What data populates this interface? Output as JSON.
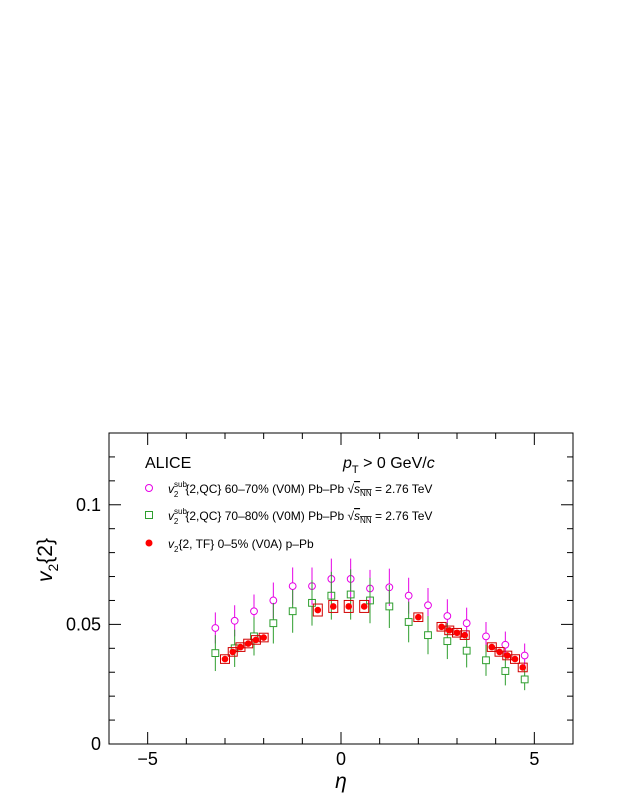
{
  "chart_data": {
    "type": "scatter",
    "title": "",
    "experiment": "ALICE",
    "condition": {
      "var": "p",
      "sub": "T",
      "rest": " > 0 GeV/",
      "unit_italic": "c"
    },
    "xlabel": "η",
    "ylabel": {
      "main": "v",
      "sub": "2",
      "rest": "{2}"
    },
    "xlim": [
      -6,
      6
    ],
    "ylim": [
      0,
      0.13
    ],
    "xticks": [
      {
        "v": -5,
        "label": "−5"
      },
      {
        "v": 0,
        "label": "0"
      },
      {
        "v": 5,
        "label": "5"
      }
    ],
    "yticks": [
      {
        "v": 0,
        "label": "0"
      },
      {
        "v": 0.05,
        "label": "0.05"
      },
      {
        "v": 0.1,
        "label": "0.1"
      }
    ],
    "grid": false,
    "legend_position": "top-left",
    "series": [
      {
        "id": "pbpb6070",
        "legend": {
          "v": "v",
          "sub": "2",
          "sup": "sub",
          "text": "{2,QC} 60–70% (V0M) Pb–Pb ",
          "sqrt": "s",
          "sqrt_sub": "NN",
          "tail": " = 2.76 TeV"
        },
        "marker": "open-circle",
        "color": "#e600e6",
        "points": [
          {
            "x": -3.25,
            "y": 0.0485,
            "err": 0.0065
          },
          {
            "x": -2.75,
            "y": 0.0515,
            "err": 0.0065
          },
          {
            "x": -2.25,
            "y": 0.0555,
            "err": 0.007
          },
          {
            "x": -1.75,
            "y": 0.06,
            "err": 0.0075
          },
          {
            "x": -1.25,
            "y": 0.066,
            "err": 0.0078
          },
          {
            "x": -0.75,
            "y": 0.066,
            "err": 0.0078
          },
          {
            "x": -0.25,
            "y": 0.069,
            "err": 0.0085
          },
          {
            "x": 0.25,
            "y": 0.069,
            "err": 0.0085
          },
          {
            "x": 0.75,
            "y": 0.065,
            "err": 0.0078
          },
          {
            "x": 1.25,
            "y": 0.0655,
            "err": 0.0078
          },
          {
            "x": 1.75,
            "y": 0.062,
            "err": 0.0075
          },
          {
            "x": 2.25,
            "y": 0.058,
            "err": 0.0072
          },
          {
            "x": 2.75,
            "y": 0.0535,
            "err": 0.007
          },
          {
            "x": 3.25,
            "y": 0.0505,
            "err": 0.0065
          },
          {
            "x": 3.75,
            "y": 0.045,
            "err": 0.006
          },
          {
            "x": 4.25,
            "y": 0.0415,
            "err": 0.0055
          },
          {
            "x": 4.75,
            "y": 0.037,
            "err": 0.005
          }
        ]
      },
      {
        "id": "pbpb7080",
        "legend": {
          "v": "v",
          "sub": "2",
          "sup": "sub",
          "text": "{2,QC} 70–80% (V0M) Pb–Pb ",
          "sqrt": "s",
          "sqrt_sub": "NN",
          "tail": " = 2.76 TeV"
        },
        "marker": "open-square",
        "color": "#2e9e2e",
        "points": [
          {
            "x": -3.25,
            "y": 0.038,
            "err": 0.0075
          },
          {
            "x": -2.75,
            "y": 0.04,
            "err": 0.0078
          },
          {
            "x": -2.25,
            "y": 0.045,
            "err": 0.008
          },
          {
            "x": -1.75,
            "y": 0.0505,
            "err": 0.0085
          },
          {
            "x": -1.25,
            "y": 0.0555,
            "err": 0.009
          },
          {
            "x": -0.75,
            "y": 0.059,
            "err": 0.0095
          },
          {
            "x": -0.25,
            "y": 0.062,
            "err": 0.01
          },
          {
            "x": 0.25,
            "y": 0.0625,
            "err": 0.0105
          },
          {
            "x": 0.75,
            "y": 0.06,
            "err": 0.0095
          },
          {
            "x": 1.25,
            "y": 0.0575,
            "err": 0.009
          },
          {
            "x": 1.75,
            "y": 0.051,
            "err": 0.0085
          },
          {
            "x": 2.25,
            "y": 0.0455,
            "err": 0.008
          },
          {
            "x": 2.75,
            "y": 0.043,
            "err": 0.0075
          },
          {
            "x": 3.25,
            "y": 0.039,
            "err": 0.007
          },
          {
            "x": 3.75,
            "y": 0.035,
            "err": 0.0065
          },
          {
            "x": 4.25,
            "y": 0.0305,
            "err": 0.006
          },
          {
            "x": 4.75,
            "y": 0.027,
            "err": 0.0045
          }
        ]
      },
      {
        "id": "ppb",
        "legend": {
          "v": "v",
          "sub": "2",
          "sup": "",
          "text": "{2, TF} 0–5% (V0A) p–Pb",
          "sqrt": "",
          "sqrt_sub": "",
          "tail": ""
        },
        "marker": "filled-circle",
        "color": "#ff0000",
        "syst_color": "#d00000",
        "points": [
          {
            "x": -3.0,
            "y": 0.0355,
            "sys": 0.0018
          },
          {
            "x": -2.8,
            "y": 0.0385,
            "sys": 0.0018
          },
          {
            "x": -2.6,
            "y": 0.0405,
            "sys": 0.0018
          },
          {
            "x": -2.4,
            "y": 0.042,
            "sys": 0.0018
          },
          {
            "x": -2.2,
            "y": 0.0435,
            "sys": 0.0018
          },
          {
            "x": -2.0,
            "y": 0.0445,
            "sys": 0.0018
          },
          {
            "x": -0.6,
            "y": 0.056,
            "sys": 0.0025
          },
          {
            "x": -0.2,
            "y": 0.0575,
            "sys": 0.0025
          },
          {
            "x": 0.2,
            "y": 0.0575,
            "sys": 0.0025
          },
          {
            "x": 0.6,
            "y": 0.0575,
            "sys": 0.0025
          },
          {
            "x": 2.0,
            "y": 0.053,
            "sys": 0.0018
          },
          {
            "x": 2.6,
            "y": 0.049,
            "sys": 0.0018
          },
          {
            "x": 2.8,
            "y": 0.0475,
            "sys": 0.0018
          },
          {
            "x": 3.0,
            "y": 0.0465,
            "sys": 0.0018
          },
          {
            "x": 3.2,
            "y": 0.0455,
            "sys": 0.0018
          },
          {
            "x": 3.9,
            "y": 0.0405,
            "sys": 0.0018
          },
          {
            "x": 4.1,
            "y": 0.0385,
            "sys": 0.0018
          },
          {
            "x": 4.3,
            "y": 0.037,
            "sys": 0.0018
          },
          {
            "x": 4.5,
            "y": 0.0355,
            "sys": 0.0018
          },
          {
            "x": 4.7,
            "y": 0.032,
            "sys": 0.0018
          }
        ]
      }
    ]
  }
}
